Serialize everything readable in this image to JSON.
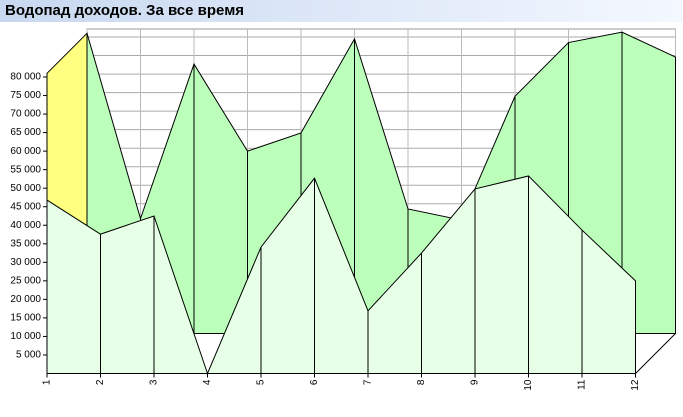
{
  "chart_data": {
    "type": "area3d",
    "title": "Водопад доходов. За все время",
    "categories": [
      "1",
      "2",
      "3",
      "4",
      "5",
      "6",
      "7",
      "8",
      "9",
      "10",
      "11",
      "12"
    ],
    "series": [
      {
        "color": "#bbffbb",
        "values": [
          81000,
          31000,
          72700,
          49200,
          54100,
          79500,
          33600,
          30600,
          64000,
          78500,
          81300,
          74600
        ]
      },
      {
        "color": "#e6ffe6",
        "values": [
          46800,
          37600,
          42500,
          0,
          34100,
          52700,
          16900,
          32500,
          49800,
          53300,
          38700,
          25000
        ]
      }
    ],
    "side_color": "#ffff80",
    "ylim": [
      0,
      80000
    ],
    "yticks": [
      {
        "value": 5000,
        "label": "5 000"
      },
      {
        "value": 10000,
        "label": "10 000"
      },
      {
        "value": 15000,
        "label": "15 000"
      },
      {
        "value": 20000,
        "label": "20 000"
      },
      {
        "value": 25000,
        "label": "25 000"
      },
      {
        "value": 30000,
        "label": "30 000"
      },
      {
        "value": 35000,
        "label": "35 000"
      },
      {
        "value": 40000,
        "label": "40 000"
      },
      {
        "value": 45000,
        "label": "45 000"
      },
      {
        "value": 50000,
        "label": "50 000"
      },
      {
        "value": 55000,
        "label": "55 000"
      },
      {
        "value": 60000,
        "label": "60 000"
      },
      {
        "value": 65000,
        "label": "65 000"
      },
      {
        "value": 70000,
        "label": "70 000"
      },
      {
        "value": 75000,
        "label": "75 000"
      },
      {
        "value": 80000,
        "label": "80 000"
      }
    ],
    "grid": true
  }
}
